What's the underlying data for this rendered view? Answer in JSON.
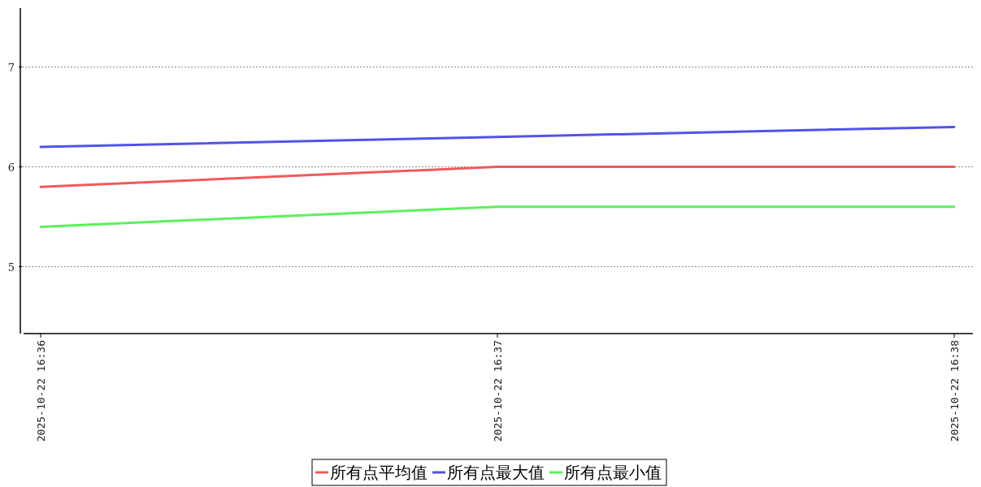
{
  "chart_data": {
    "type": "line",
    "categories": [
      "2025-10-22 16:36",
      "2025-10-22 16:37",
      "2025-10-22 16:38"
    ],
    "series": [
      {
        "name": "所有点平均值",
        "color": "#f05a5a",
        "values": [
          5.8,
          6.0,
          6.0
        ]
      },
      {
        "name": "所有点最大值",
        "color": "#5353e8",
        "values": [
          6.2,
          6.3,
          6.4
        ]
      },
      {
        "name": "所有点最小值",
        "color": "#5cf05c",
        "values": [
          5.4,
          5.6,
          5.6
        ]
      }
    ],
    "ylim": [
      4.33,
      7.59
    ],
    "yticks": [
      5,
      6,
      7
    ],
    "grid": "y",
    "legend": "bottom",
    "line_style": "solid",
    "marker": "none"
  }
}
